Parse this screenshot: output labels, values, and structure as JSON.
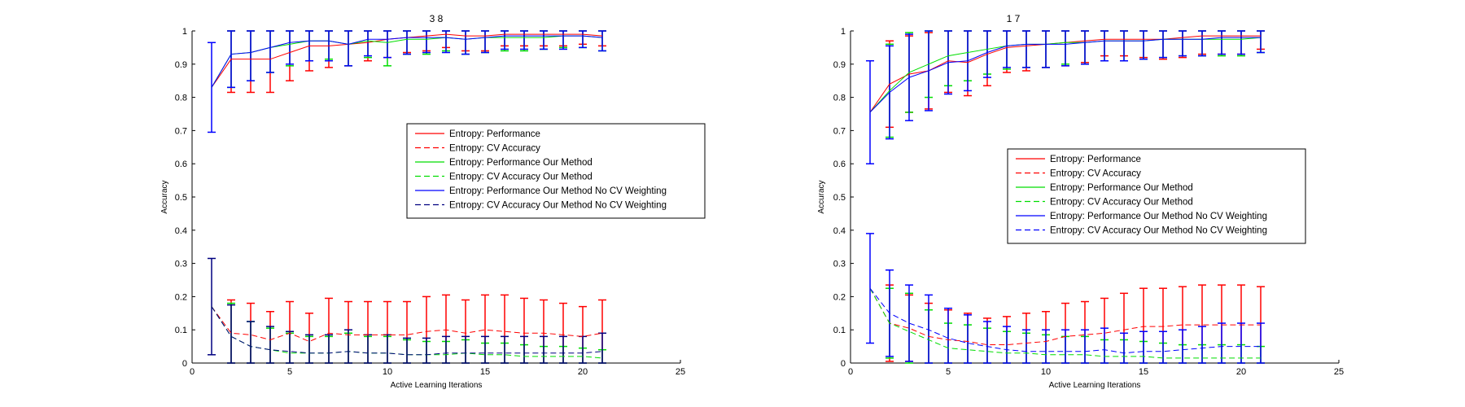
{
  "chart_data": [
    {
      "type": "line",
      "title": "3  8",
      "xlabel": "Active Learning Iterations",
      "ylabel": "Accuracy",
      "xlim": [
        0,
        25
      ],
      "ylim": [
        0,
        1
      ],
      "xticks": [
        0,
        5,
        10,
        15,
        20,
        25
      ],
      "yticks": [
        0,
        0.1,
        0.2,
        0.3,
        0.4,
        0.5,
        0.6,
        0.7,
        0.8,
        0.9,
        1
      ],
      "grid": false,
      "legend_position": "right-middle",
      "x": [
        1,
        2,
        3,
        4,
        5,
        6,
        7,
        8,
        9,
        10,
        11,
        12,
        13,
        14,
        15,
        16,
        17,
        18,
        19,
        20,
        21
      ],
      "series": [
        {
          "name": "Entropy: Performance",
          "color": "#ff0000",
          "dash": "solid",
          "values": [
            0.83,
            0.915,
            0.915,
            0.915,
            0.935,
            0.955,
            0.955,
            0.96,
            0.965,
            0.975,
            0.98,
            0.985,
            0.99,
            0.985,
            0.985,
            0.99,
            0.99,
            0.99,
            0.99,
            0.99,
            0.985
          ],
          "err": [
            0,
            0.1,
            0.1,
            0.1,
            0.085,
            0.075,
            0.065,
            0.065,
            0.055,
            0.055,
            0.045,
            0.045,
            0.04,
            0.045,
            0.045,
            0.035,
            0.035,
            0.035,
            0.035,
            0.03,
            0.03
          ]
        },
        {
          "name": "Entropy: CV Accuracy",
          "color": "#ff0000",
          "dash": "dash",
          "values": [
            0.17,
            0.09,
            0.085,
            0.07,
            0.09,
            0.065,
            0.09,
            0.085,
            0.085,
            0.085,
            0.085,
            0.095,
            0.1,
            0.09,
            0.1,
            0.095,
            0.09,
            0.09,
            0.085,
            0.08,
            0.09
          ],
          "err": [
            0,
            0.1,
            0.095,
            0.085,
            0.095,
            0.085,
            0.105,
            0.1,
            0.1,
            0.1,
            0.1,
            0.105,
            0.105,
            0.1,
            0.105,
            0.11,
            0.105,
            0.1,
            0.095,
            0.09,
            0.1
          ]
        },
        {
          "name": "Entropy: Performance Our Method",
          "color": "#00dd00",
          "dash": "solid",
          "values": [
            0.83,
            0.93,
            0.935,
            0.95,
            0.96,
            0.97,
            0.97,
            0.96,
            0.97,
            0.965,
            0.975,
            0.975,
            0.98,
            0.975,
            0.98,
            0.98,
            0.98,
            0.98,
            0.985,
            0.985,
            0.98
          ],
          "err": [
            0,
            0.1,
            0.085,
            0.075,
            0.065,
            0.06,
            0.055,
            0.065,
            0.05,
            0.07,
            0.045,
            0.045,
            0.04,
            0.045,
            0.045,
            0.04,
            0.04,
            0.035,
            0.035,
            0.035,
            0.04
          ]
        },
        {
          "name": "Entropy: CV Accuracy Our Method",
          "color": "#00dd00",
          "dash": "dash",
          "values": [
            0.17,
            0.08,
            0.05,
            0.04,
            0.03,
            0.03,
            0.03,
            0.035,
            0.03,
            0.03,
            0.025,
            0.025,
            0.025,
            0.03,
            0.025,
            0.025,
            0.02,
            0.02,
            0.02,
            0.02,
            0.015
          ],
          "err": [
            0,
            0.1,
            0.075,
            0.065,
            0.06,
            0.05,
            0.05,
            0.055,
            0.05,
            0.05,
            0.045,
            0.04,
            0.04,
            0.04,
            0.035,
            0.035,
            0.035,
            0.03,
            0.03,
            0.025,
            0.025
          ]
        },
        {
          "name": "Entropy: Performance Our Method No CV Weighting",
          "color": "#0000ff",
          "dash": "solid",
          "values": [
            0.83,
            0.93,
            0.935,
            0.95,
            0.965,
            0.97,
            0.97,
            0.96,
            0.975,
            0.975,
            0.98,
            0.98,
            0.98,
            0.975,
            0.98,
            0.985,
            0.985,
            0.985,
            0.985,
            0.985,
            0.98
          ],
          "err": [
            0.135,
            0.1,
            0.085,
            0.075,
            0.065,
            0.06,
            0.06,
            0.065,
            0.05,
            0.055,
            0.05,
            0.045,
            0.045,
            0.045,
            0.045,
            0.04,
            0.04,
            0.04,
            0.04,
            0.035,
            0.04
          ]
        },
        {
          "name": "Entropy: CV Accuracy Our Method No CV Weighting",
          "color": "#000080",
          "dash": "dash",
          "values": [
            0.17,
            0.08,
            0.05,
            0.04,
            0.035,
            0.03,
            0.03,
            0.035,
            0.03,
            0.03,
            0.025,
            0.025,
            0.03,
            0.03,
            0.03,
            0.03,
            0.03,
            0.03,
            0.03,
            0.03,
            0.035
          ],
          "err": [
            0.145,
            0.095,
            0.075,
            0.07,
            0.06,
            0.055,
            0.055,
            0.065,
            0.055,
            0.055,
            0.05,
            0.05,
            0.05,
            0.05,
            0.05,
            0.05,
            0.05,
            0.05,
            0.05,
            0.05,
            0.055
          ]
        }
      ]
    },
    {
      "type": "line",
      "title": "1  7",
      "xlabel": "Active Learning Iterations",
      "ylabel": "Accuracy",
      "xlim": [
        0,
        25
      ],
      "ylim": [
        0,
        1
      ],
      "xticks": [
        0,
        5,
        10,
        15,
        20,
        25
      ],
      "yticks": [
        0,
        0.1,
        0.2,
        0.3,
        0.4,
        0.5,
        0.6,
        0.7,
        0.8,
        0.9,
        1
      ],
      "grid": false,
      "legend_position": "right-middle",
      "x": [
        1,
        2,
        3,
        4,
        5,
        6,
        7,
        8,
        9,
        10,
        11,
        12,
        13,
        14,
        15,
        16,
        17,
        18,
        19,
        20,
        21
      ],
      "series": [
        {
          "name": "Entropy: Performance",
          "color": "#ff0000",
          "dash": "solid",
          "values": [
            0.755,
            0.84,
            0.87,
            0.88,
            0.91,
            0.905,
            0.93,
            0.95,
            0.955,
            0.96,
            0.965,
            0.97,
            0.975,
            0.975,
            0.975,
            0.975,
            0.98,
            0.985,
            0.985,
            0.985,
            0.985
          ],
          "err": [
            0,
            0.13,
            0.115,
            0.115,
            0.095,
            0.1,
            0.095,
            0.075,
            0.075,
            0.07,
            0.07,
            0.065,
            0.05,
            0.05,
            0.055,
            0.06,
            0.06,
            0.055,
            0.055,
            0.055,
            0.04
          ]
        },
        {
          "name": "Entropy: CV Accuracy",
          "color": "#ff0000",
          "dash": "dash",
          "values": [
            0.225,
            0.12,
            0.105,
            0.08,
            0.07,
            0.065,
            0.055,
            0.055,
            0.06,
            0.065,
            0.08,
            0.085,
            0.09,
            0.1,
            0.11,
            0.11,
            0.115,
            0.115,
            0.115,
            0.115,
            0.115
          ],
          "err": [
            0,
            0.115,
            0.1,
            0.1,
            0.09,
            0.085,
            0.08,
            0.085,
            0.09,
            0.09,
            0.1,
            0.1,
            0.105,
            0.11,
            0.115,
            0.115,
            0.115,
            0.12,
            0.12,
            0.12,
            0.115
          ]
        },
        {
          "name": "Entropy: Performance Our Method",
          "color": "#00dd00",
          "dash": "solid",
          "values": [
            0.755,
            0.82,
            0.875,
            0.9,
            0.925,
            0.935,
            0.945,
            0.955,
            0.96,
            0.96,
            0.965,
            0.965,
            0.97,
            0.97,
            0.97,
            0.975,
            0.975,
            0.975,
            0.975,
            0.975,
            0.98
          ],
          "err": [
            0,
            0.14,
            0.12,
            0.1,
            0.09,
            0.085,
            0.075,
            0.07,
            0.07,
            0.07,
            0.065,
            0.065,
            0.06,
            0.06,
            0.055,
            0.055,
            0.05,
            0.05,
            0.05,
            0.05,
            0.045
          ]
        },
        {
          "name": "Entropy: CV Accuracy Our Method",
          "color": "#00dd00",
          "dash": "dash",
          "values": [
            0.225,
            0.12,
            0.095,
            0.07,
            0.045,
            0.04,
            0.035,
            0.03,
            0.03,
            0.025,
            0.025,
            0.025,
            0.02,
            0.02,
            0.02,
            0.015,
            0.015,
            0.015,
            0.015,
            0.015,
            0.015
          ],
          "err": [
            0,
            0.105,
            0.115,
            0.09,
            0.075,
            0.075,
            0.07,
            0.065,
            0.06,
            0.06,
            0.055,
            0.055,
            0.05,
            0.05,
            0.045,
            0.045,
            0.04,
            0.04,
            0.04,
            0.04,
            0.035
          ]
        },
        {
          "name": "Entropy: Performance Our Method No CV Weighting",
          "color": "#0000ff",
          "dash": "solid",
          "values": [
            0.755,
            0.815,
            0.86,
            0.88,
            0.905,
            0.91,
            0.935,
            0.955,
            0.96,
            0.96,
            0.96,
            0.965,
            0.97,
            0.97,
            0.97,
            0.975,
            0.975,
            0.975,
            0.98,
            0.98,
            0.98
          ],
          "err": [
            0.155,
            0.14,
            0.13,
            0.12,
            0.095,
            0.09,
            0.075,
            0.065,
            0.07,
            0.07,
            0.065,
            0.065,
            0.06,
            0.06,
            0.055,
            0.055,
            0.05,
            0.05,
            0.05,
            0.05,
            0.045
          ]
        },
        {
          "name": "Entropy: CV Accuracy Our Method No CV Weighting",
          "color": "#0000ff",
          "dash": "dash",
          "values": [
            0.225,
            0.15,
            0.12,
            0.1,
            0.075,
            0.06,
            0.05,
            0.04,
            0.035,
            0.035,
            0.035,
            0.035,
            0.04,
            0.03,
            0.035,
            0.035,
            0.04,
            0.045,
            0.05,
            0.05,
            0.05
          ],
          "err": [
            0.165,
            0.13,
            0.115,
            0.105,
            0.09,
            0.085,
            0.075,
            0.07,
            0.065,
            0.065,
            0.065,
            0.065,
            0.065,
            0.06,
            0.06,
            0.06,
            0.06,
            0.065,
            0.07,
            0.07,
            0.07
          ]
        }
      ]
    }
  ]
}
